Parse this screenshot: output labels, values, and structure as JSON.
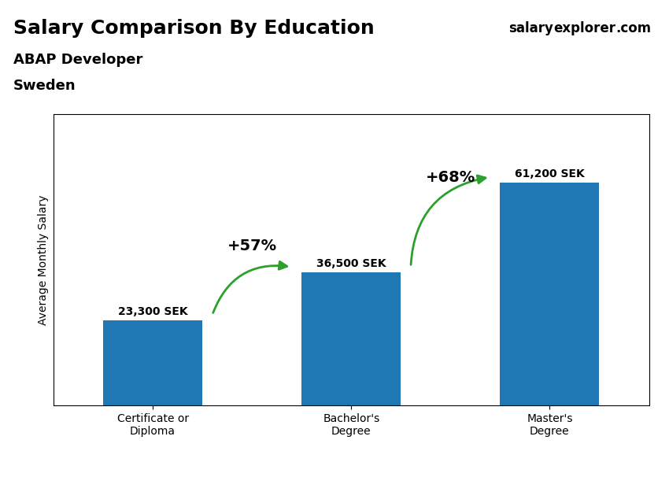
{
  "chart_data": {
    "type": "bar",
    "title": "Salary Comparison By Education",
    "subtitle": "ABAP Developer",
    "country": "Sweden",
    "watermark": [
      "salary",
      "explorer",
      ".com"
    ],
    "categories": [
      "Certificate or\nDiploma",
      "Bachelor's\nDegree",
      "Master's\nDegree"
    ],
    "values": [
      23300,
      36500,
      61200
    ],
    "value_labels": [
      "23,300 SEK",
      "36,500 SEK",
      "61,200 SEK"
    ],
    "data_labels": true,
    "y_label": "Average Monthly Salary",
    "ylim": [
      0,
      80000
    ],
    "tick_labels": "x",
    "grid": false,
    "annotations": [
      {
        "text": "+57%",
        "from": "Certificate or\nDiploma",
        "to": "Bachelor's\nDegree"
      },
      {
        "text": "+68%",
        "from": "Bachelor's\nDegree",
        "to": "Master's\nDegree"
      }
    ]
  }
}
